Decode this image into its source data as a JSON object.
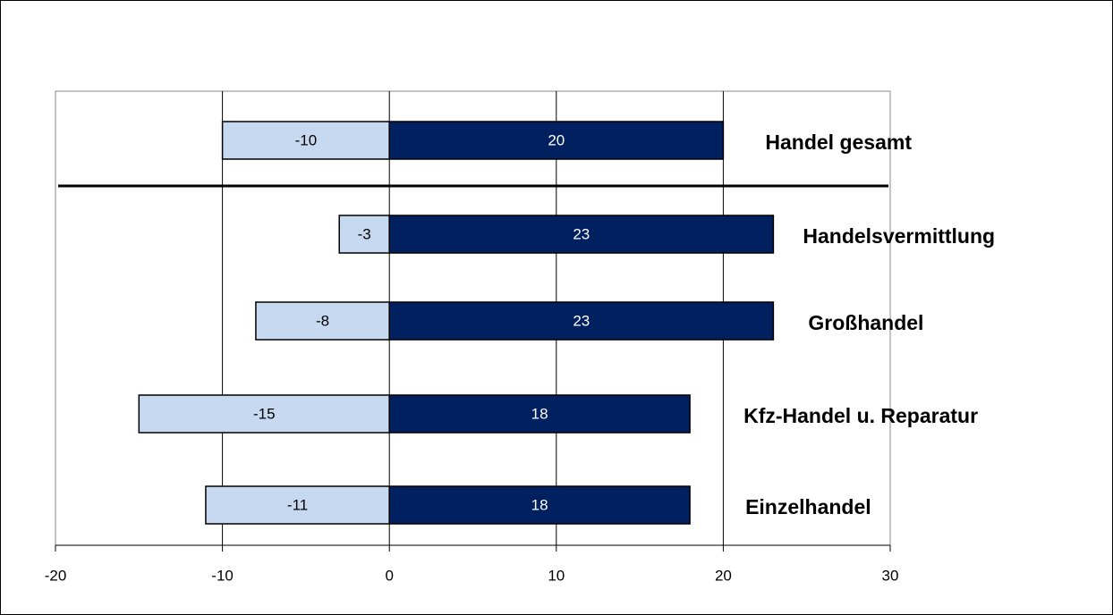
{
  "chart_data": {
    "type": "diverging_bar",
    "categories": [
      "Handel gesamt",
      "Handelsvermittlung",
      "Großhandel",
      "Kfz-Handel u. Reparatur",
      "Einzelhandel"
    ],
    "series": [
      {
        "color": "#c6d9f1",
        "values": [
          -10,
          -3,
          -8,
          -15,
          -11
        ]
      },
      {
        "color": "#002060",
        "values": [
          20,
          23,
          23,
          18,
          18
        ]
      }
    ],
    "xlim": [
      -20,
      30
    ],
    "xticks": [
      -20,
      -10,
      0,
      10,
      20,
      30
    ],
    "grid": true
  }
}
